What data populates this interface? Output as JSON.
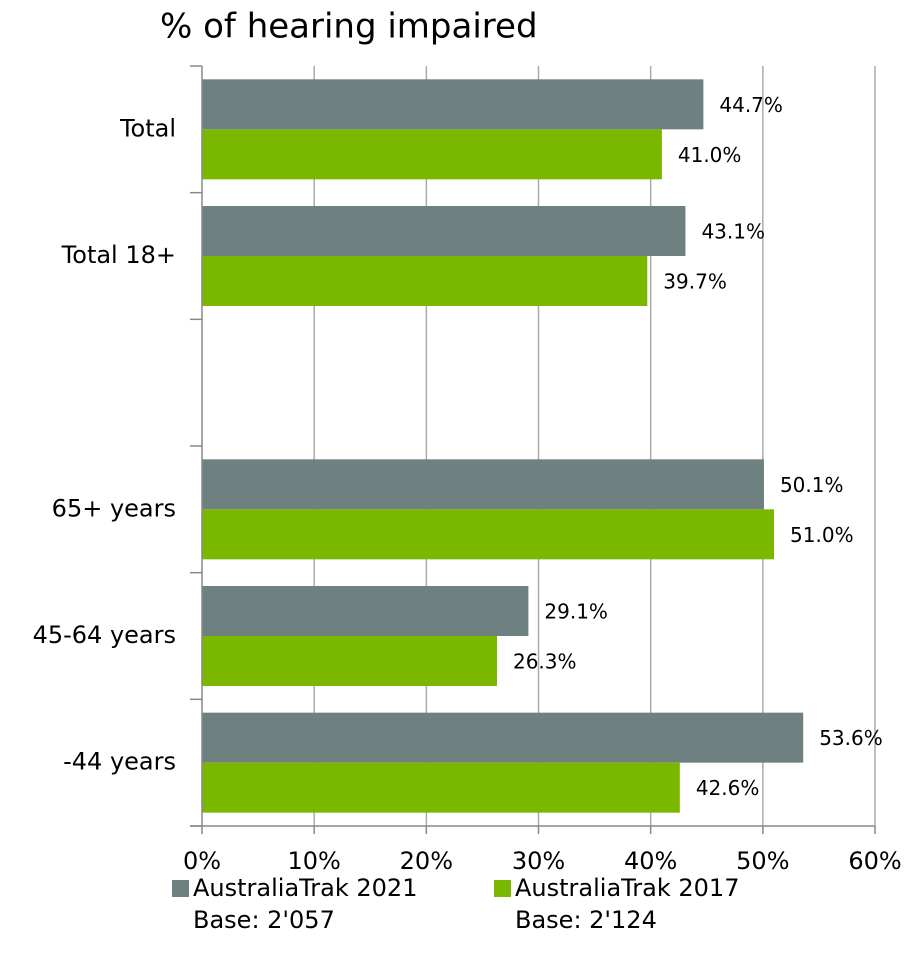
{
  "chart_data": {
    "type": "bar",
    "orientation": "horizontal",
    "title": "% of hearing impaired",
    "categories": [
      "Total",
      "Total 18+",
      null,
      "65+ years",
      "45-64 years",
      "-44 years"
    ],
    "series": [
      {
        "name": "AustraliaTrak 2021",
        "base": "Base: 2'057",
        "color": "#6e8080",
        "values": [
          44.7,
          43.1,
          null,
          50.1,
          29.1,
          53.6
        ],
        "value_labels": [
          "44.7%",
          "43.1%",
          null,
          "50.1%",
          "29.1%",
          "53.6%"
        ]
      },
      {
        "name": "AustraliaTrak 2017",
        "base": "Base: 2'124",
        "color": "#7ab800",
        "values": [
          41.0,
          39.7,
          null,
          51.0,
          26.3,
          42.6
        ],
        "value_labels": [
          "41.0%",
          "39.7%",
          null,
          "51.0%",
          "26.3%",
          "42.6%"
        ]
      }
    ],
    "xlim": [
      0,
      60
    ],
    "xticks": [
      {
        "value": 0,
        "label": "0%"
      },
      {
        "value": 10,
        "label": "10%"
      },
      {
        "value": 20,
        "label": "20%"
      },
      {
        "value": 30,
        "label": "30%"
      },
      {
        "value": 40,
        "label": "40%"
      },
      {
        "value": 50,
        "label": "50%"
      },
      {
        "value": 60,
        "label": "60%"
      }
    ],
    "grid": true
  }
}
